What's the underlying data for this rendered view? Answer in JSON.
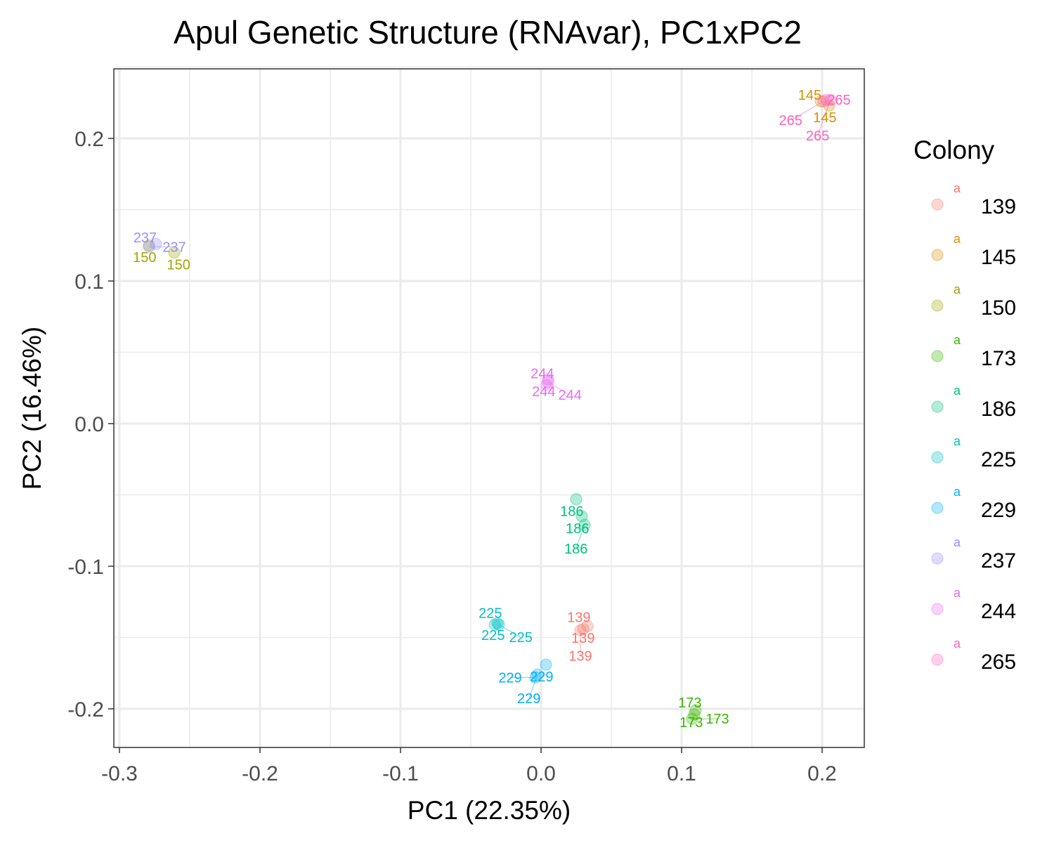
{
  "chart_data": {
    "type": "scatter",
    "title": "Apul Genetic Structure (RNAvar), PC1xPC2",
    "xlabel": "PC1 (22.35%)",
    "ylabel": "PC2 (16.46%)",
    "xlim": [
      -0.305,
      0.23
    ],
    "ylim": [
      -0.228,
      0.248
    ],
    "xticks": [
      -0.3,
      -0.2,
      -0.1,
      0.0,
      0.1,
      0.2
    ],
    "xtick_labels": [
      "-0.3",
      "-0.2",
      "-0.1",
      "0.0",
      "0.1",
      "0.2"
    ],
    "yticks": [
      -0.2,
      -0.1,
      0.0,
      0.1,
      0.2
    ],
    "ytick_labels": [
      "-0.2",
      "-0.1",
      "0.0",
      "0.1",
      "0.2"
    ],
    "grid": true,
    "legend": {
      "title": "Colony",
      "placement": "right",
      "key_glyph": "a"
    },
    "series": [
      {
        "name": "139",
        "color": "#F8766D",
        "points": [
          [
            0.033,
            -0.142
          ],
          [
            0.03,
            -0.144
          ],
          [
            0.028,
            -0.145
          ]
        ]
      },
      {
        "name": "145",
        "color": "#D89000",
        "points": [
          [
            0.205,
            0.223
          ],
          [
            0.199,
            0.226
          ]
        ]
      },
      {
        "name": "150",
        "color": "#A3A500",
        "points": [
          [
            -0.279,
            0.125
          ],
          [
            -0.261,
            0.12
          ]
        ]
      },
      {
        "name": "173",
        "color": "#39B600",
        "points": [
          [
            0.11,
            -0.201
          ],
          [
            0.109,
            -0.204
          ],
          [
            0.1075,
            -0.207
          ]
        ]
      },
      {
        "name": "186",
        "color": "#00BF7D",
        "points": [
          [
            0.025,
            -0.053
          ],
          [
            0.029,
            -0.065
          ],
          [
            0.031,
            -0.071
          ]
        ]
      },
      {
        "name": "225",
        "color": "#00BFC4",
        "points": [
          [
            -0.031,
            -0.14
          ],
          [
            -0.033,
            -0.141
          ],
          [
            -0.03,
            -0.141
          ]
        ]
      },
      {
        "name": "229",
        "color": "#00B0F6",
        "points": [
          [
            0.0035,
            -0.169
          ],
          [
            -0.0025,
            -0.176
          ],
          [
            -0.004,
            -0.178
          ]
        ]
      },
      {
        "name": "237",
        "color": "#9590FF",
        "points": [
          [
            -0.274,
            0.126
          ],
          [
            -0.279,
            0.124
          ]
        ]
      },
      {
        "name": "244",
        "color": "#E76BF3",
        "points": [
          [
            0.005,
            0.031
          ],
          [
            0.004,
            0.027
          ],
          [
            0.005,
            0.029
          ]
        ]
      },
      {
        "name": "265",
        "color": "#FF62BC",
        "points": [
          [
            0.203,
            0.227
          ],
          [
            0.206,
            0.227
          ],
          [
            0.201,
            0.226
          ]
        ]
      }
    ]
  }
}
